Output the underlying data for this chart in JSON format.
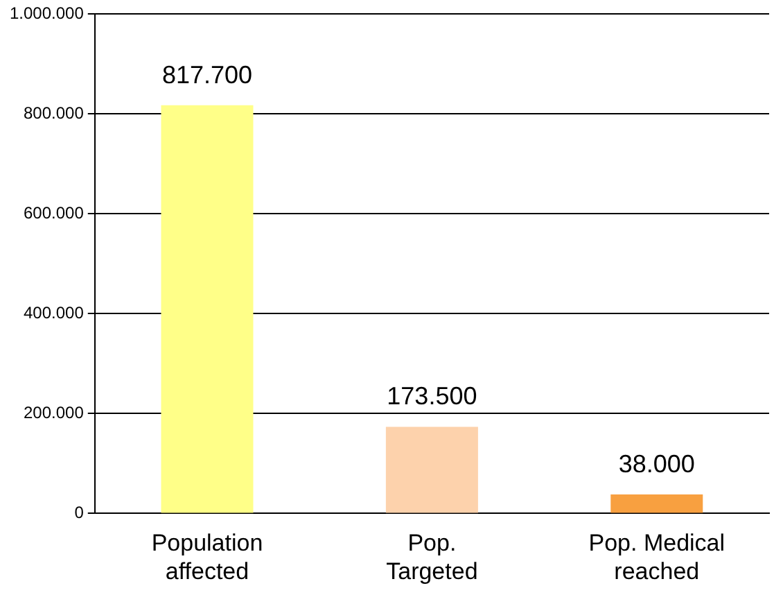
{
  "chart_data": {
    "type": "bar",
    "categories": [
      "Population affected",
      "Pop. Targeted",
      "Pop. Medical reached"
    ],
    "values": [
      817700,
      173500,
      38000
    ],
    "colors": [
      "#ffff88",
      "#fdd2ac",
      "#f8a040"
    ],
    "value_labels": [
      "817.700",
      "173.500",
      "38.000"
    ],
    "ylim": [
      0,
      1000000
    ],
    "yticks": [
      {
        "value": 0,
        "label": "0"
      },
      {
        "value": 200000,
        "label": "200.000"
      },
      {
        "value": 400000,
        "label": "400.000"
      },
      {
        "value": 600000,
        "label": "600.000"
      },
      {
        "value": 800000,
        "label": "800.000"
      },
      {
        "value": 1000000,
        "label": "1.000.000"
      }
    ],
    "grid": "y",
    "legend": false
  }
}
